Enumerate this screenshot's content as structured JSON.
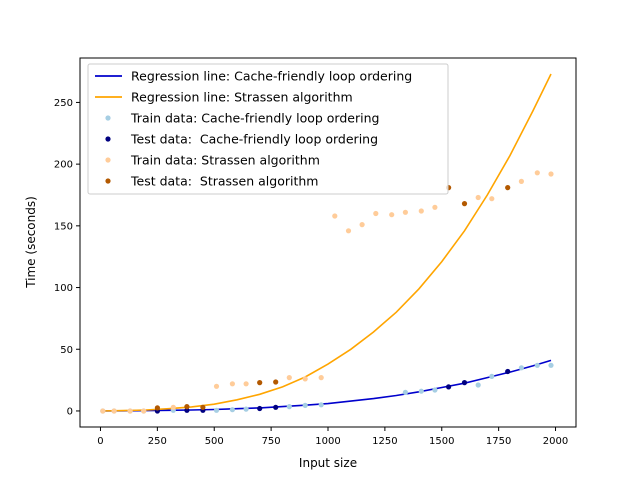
{
  "chart_data": {
    "type": "scatter",
    "xlabel": "Input size",
    "ylabel": "Time (seconds)",
    "xlim": [
      -90,
      2090
    ],
    "ylim": [
      -13,
      286
    ],
    "xticks": [
      0,
      250,
      500,
      750,
      1000,
      1250,
      1500,
      1750,
      2000
    ],
    "yticks": [
      0,
      50,
      100,
      150,
      200,
      250
    ],
    "grid": false,
    "legend_position": "top-left",
    "series": [
      {
        "name": "Regression line: Cache-friendly loop ordering",
        "kind": "line",
        "color": "#0000cc",
        "x": [
          0,
          100,
          200,
          300,
          400,
          500,
          600,
          700,
          800,
          900,
          1000,
          1100,
          1200,
          1300,
          1400,
          1500,
          1600,
          1700,
          1800,
          1900,
          1980
        ],
        "y": [
          0,
          0.1,
          0.3,
          0.5,
          0.8,
          1.2,
          1.8,
          2.5,
          3.5,
          4.7,
          6,
          8,
          10,
          12.5,
          15.5,
          19,
          22.5,
          27,
          31.5,
          36.5,
          41
        ]
      },
      {
        "name": "Regression line: Strassen algorithm",
        "kind": "line",
        "color": "#ffa500",
        "x": [
          0,
          100,
          200,
          300,
          400,
          500,
          600,
          700,
          800,
          900,
          1000,
          1100,
          1200,
          1300,
          1400,
          1500,
          1600,
          1700,
          1800,
          1900,
          1980
        ],
        "y": [
          0,
          0.3,
          0.8,
          1.8,
          3.3,
          5.5,
          9,
          13.5,
          19.5,
          27.5,
          38,
          50,
          64,
          80,
          99,
          121,
          146,
          175,
          207,
          243,
          273
        ]
      },
      {
        "name": "Train data: Cache-friendly loop ordering",
        "kind": "scatter",
        "color": "#a6cee3",
        "x": [
          10,
          60,
          130,
          190,
          320,
          510,
          580,
          640,
          830,
          900,
          970,
          1340,
          1410,
          1470,
          1660,
          1720,
          1850,
          1920,
          1980
        ],
        "y": [
          0,
          0,
          0,
          0,
          0.5,
          0.5,
          1,
          1.5,
          3.5,
          4.5,
          5,
          15,
          16,
          17,
          21,
          28,
          35,
          37,
          37
        ]
      },
      {
        "name": "Test data:  Cache-friendly loop ordering",
        "kind": "scatter",
        "color": "#000080",
        "x": [
          250,
          380,
          450,
          700,
          770,
          1530,
          1600,
          1790
        ],
        "y": [
          0,
          0.5,
          0.5,
          2,
          3,
          19.5,
          23,
          32
        ]
      },
      {
        "name": "Train data: Strassen algorithm",
        "kind": "scatter",
        "color": "#ffcc99",
        "x": [
          10,
          60,
          130,
          190,
          320,
          510,
          580,
          640,
          830,
          900,
          970,
          1030,
          1090,
          1150,
          1210,
          1280,
          1340,
          1410,
          1470,
          1660,
          1720,
          1850,
          1920,
          1980
        ],
        "y": [
          0,
          0,
          0,
          0,
          3,
          20,
          22,
          22,
          27,
          26,
          27,
          158,
          146,
          151,
          160,
          159,
          161,
          162,
          165,
          173,
          172,
          186,
          193,
          192
        ]
      },
      {
        "name": "Test data:  Strassen algorithm",
        "kind": "scatter",
        "color": "#b35900",
        "x": [
          250,
          380,
          450,
          700,
          770,
          1530,
          1600,
          1790
        ],
        "y": [
          2.5,
          3.5,
          3,
          23,
          23.5,
          181,
          168,
          181
        ]
      }
    ]
  }
}
